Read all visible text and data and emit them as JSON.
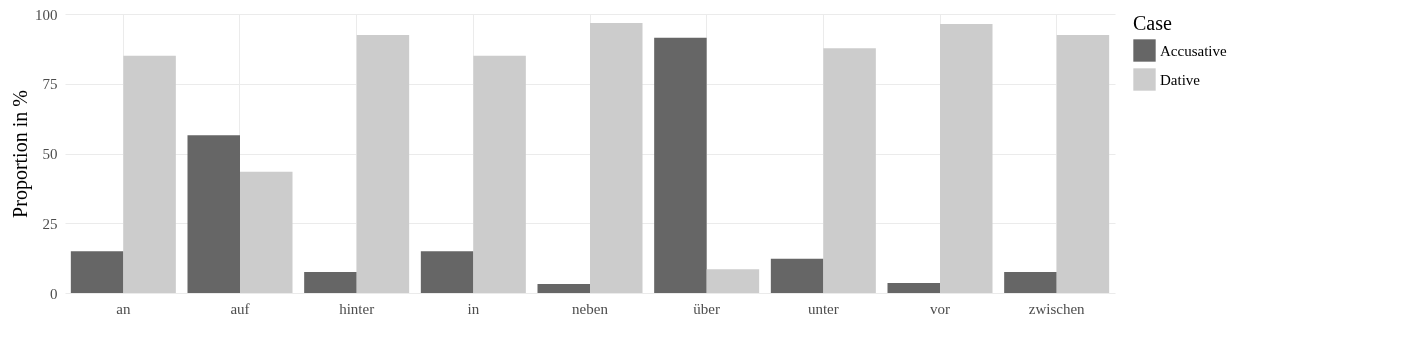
{
  "chart_data": {
    "type": "bar",
    "ylabel": "Proportion in %",
    "legend_title": "Case",
    "categories": [
      "an",
      "auf",
      "hinter",
      "in",
      "neben",
      "über",
      "unter",
      "vor",
      "zwischen"
    ],
    "series": [
      {
        "name": "Accusative",
        "color": "#666666",
        "values": [
          15,
          56.5,
          7.5,
          15,
          3.2,
          91.5,
          12.3,
          3.6,
          7.5
        ]
      },
      {
        "name": "Dative",
        "color": "#cccccc",
        "values": [
          85,
          43.5,
          92.5,
          85,
          96.8,
          8.5,
          87.7,
          96.4,
          92.5
        ]
      }
    ],
    "ylim": [
      0,
      100
    ],
    "yticks": [
      0,
      25,
      50,
      75,
      100
    ],
    "grid": true,
    "legend": "right"
  }
}
